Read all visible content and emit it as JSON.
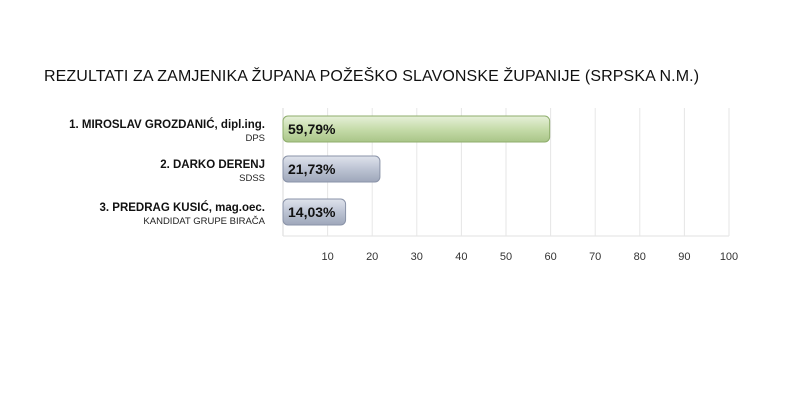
{
  "title": "REZULTATI ZA ZAMJENIKA ŽUPANA POŽEŠKO SLAVONSKE ŽUPANIJE (SRPSKA N.M.)",
  "chart_data": {
    "type": "bar",
    "orientation": "horizontal",
    "title": "REZULTATI ZA ZAMJENIKA ŽUPANA POŽEŠKO SLAVONSKE ŽUPANIJE (SRPSKA N.M.)",
    "xlim": [
      0,
      100
    ],
    "ticks": [
      10,
      20,
      30,
      40,
      50,
      60,
      70,
      80,
      90,
      100
    ],
    "grid": true,
    "categories": [
      "1. MIROSLAV GROZDANIĆ, dipl.ing.",
      "2. DARKO DERENJ",
      "3. PREDRAG KUSIĆ, mag.oec."
    ],
    "parties": [
      "DPS",
      "SDSS",
      "KANDIDAT GRUPE BIRAČA"
    ],
    "values": [
      59.79,
      21.73,
      14.03
    ],
    "value_labels": [
      "59,79%",
      "21,73%",
      "14,03%"
    ],
    "bar_colors": [
      "#c3d9a8",
      "#b9c1d1",
      "#b9c1d1"
    ]
  }
}
